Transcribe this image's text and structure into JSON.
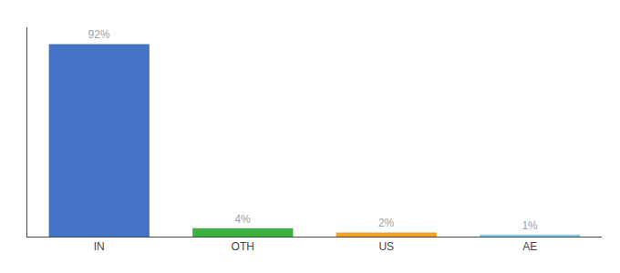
{
  "chart_data": {
    "type": "bar",
    "categories": [
      "IN",
      "OTH",
      "US",
      "AE"
    ],
    "values": [
      92,
      4,
      2,
      1
    ],
    "value_labels": [
      "92%",
      "4%",
      "2%",
      "1%"
    ],
    "data_labels": true,
    "colors": [
      "#4472c4",
      "#3cb043",
      "#f0a030",
      "#87ceeb"
    ],
    "ylim": [
      0,
      100
    ],
    "yticks": [],
    "grid": false,
    "tick_labels": "x"
  }
}
